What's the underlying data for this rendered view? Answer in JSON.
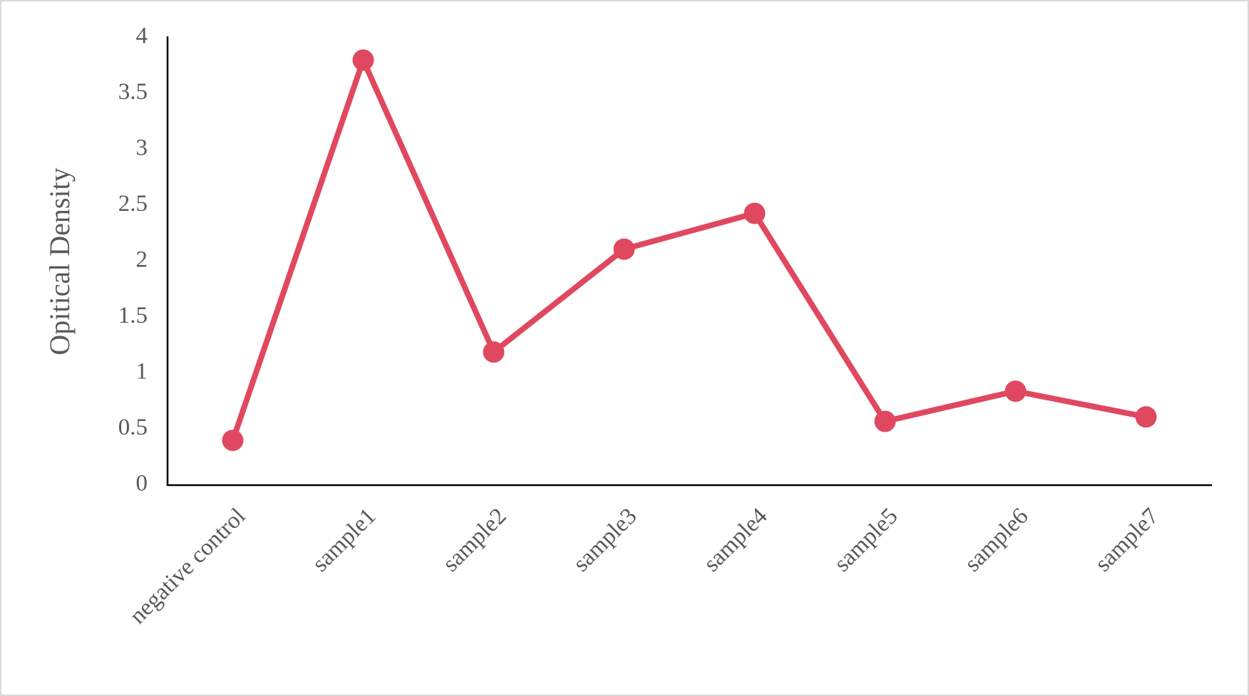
{
  "chart_data": {
    "type": "line",
    "y_label": "Opitical Density",
    "categories": [
      "negative control",
      "sample1",
      "sample2",
      "sample3",
      "sample4",
      "sample5",
      "sample6",
      "sample7"
    ],
    "series": [
      {
        "color": "#e0485f",
        "values": [
          0.4,
          3.8,
          1.19,
          2.11,
          2.43,
          0.57,
          0.84,
          0.61
        ]
      }
    ],
    "ylim": [
      0,
      4
    ],
    "yticks": [
      0,
      0.5,
      1,
      1.5,
      2,
      2.5,
      3,
      3.5,
      4
    ],
    "grid": false
  }
}
